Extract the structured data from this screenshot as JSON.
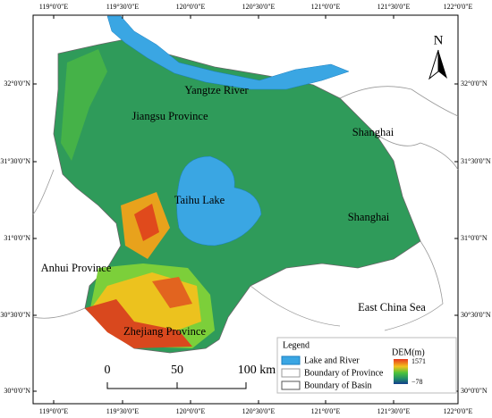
{
  "axes": {
    "top": [
      "119°0'0\"E",
      "119°30'0\"E",
      "120°0'0\"E",
      "120°30'0\"E",
      "121°0'0\"E",
      "121°30'0\"E",
      "122°0'0\"E"
    ],
    "bottom": [
      "119°0'0\"E",
      "119°30'0\"E",
      "120°0'0\"E",
      "120°30'0\"E",
      "121°0'0\"E",
      "121°30'0\"E",
      "122°0'0\"E"
    ],
    "left": [
      "32°0'0\"N",
      "31°30'0\"N",
      "31°0'0\"N",
      "30°30'0\"N",
      "30°0'0\"N"
    ],
    "right": [
      "32°0'0\"N",
      "31°30'0\"N",
      "31°0'0\"N",
      "30°30'0\"N",
      "30°0'0\"N"
    ]
  },
  "labels": [
    "Yangtze River",
    "Jiangsu Province",
    "Shanghai",
    "Taihu Lake",
    "Shanghai",
    "Anhui Province",
    "East China Sea",
    "Zhejiang Province"
  ],
  "north": "N",
  "scale_bar": [
    "0",
    "50",
    "100 km"
  ],
  "legend": {
    "title": "Legend",
    "items": [
      "Lake and River",
      "Boundary of Province",
      "Boundary of Basin"
    ],
    "dem": {
      "title": "DEM(m)",
      "max": "1571",
      "min": "−78"
    }
  }
}
